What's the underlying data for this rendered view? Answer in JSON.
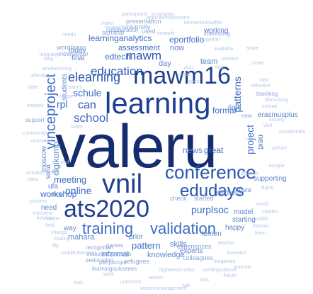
{
  "cloud_words": [
    "valeru",
    "learning",
    "mawm16",
    "vnil",
    "ats2020",
    "conference",
    "edudays",
    "training",
    "validation",
    "elearning",
    "vinceproject",
    "education",
    "school",
    "schule",
    "can",
    "rpl",
    "eportfolio",
    "learninganalytics",
    "mawm",
    "edtech",
    "assessment",
    "meeting",
    "workshop",
    "online",
    "purplsoc",
    "project",
    "patterns",
    "pattern",
    "informal",
    "great",
    "news",
    "formal",
    "skills",
    "team",
    "digikomp",
    "students",
    "now",
    "day",
    "next",
    "working",
    "final",
    "today",
    "time",
    "experts",
    "knowledge",
    "mahara",
    "way",
    "need",
    "ufa",
    "mcu",
    "zagreb",
    "moscow",
    "sofia",
    "supporting",
    "future",
    "check",
    "model",
    "lernen",
    "prior",
    "started",
    "starting",
    "happy",
    "teachers",
    "erasmusplus",
    "presentation",
    "seminar",
    "university",
    "collaboration",
    "used",
    "network",
    "wordpress",
    "anerkennung",
    "newsletter",
    "issues",
    "experiences",
    "recognition",
    "refugees",
    "colleagues",
    "eeducation",
    "eeducationaustria",
    "learningoutcomes",
    "peripscope",
    "highereducation",
    "wissen",
    "unterricht",
    "wissensmanagement",
    "participants",
    "programm",
    "approach",
    "slideshare",
    "kennenlernkaffee",
    "make",
    "moment",
    "together",
    "interesting",
    "available",
    "session",
    "reflective",
    "teaching",
    "discussing",
    "edchat",
    "society",
    "start",
    "new",
    "visit",
    "data",
    "lessons",
    "reflection",
    "support",
    "video",
    "house",
    "make",
    "learners",
    "digital",
    "picture",
    "europe",
    "inclusion",
    "class",
    "cool",
    "pictures",
    "fieldtrip",
    "interview",
    "field",
    "change",
    "making",
    "twitter",
    "tool",
    "medien",
    "mobile",
    "world",
    "estonia",
    "learn",
    "community",
    "outcomes",
    "language",
    "blog",
    "needs",
    "create",
    "share",
    "socialmedia",
    "first",
    "good",
    "mooc",
    "dslu",
    "flip",
    "mobile learning",
    "workingoutloud",
    "leogames",
    "thewatch",
    "teacher",
    "games",
    "work",
    "look",
    "jobs",
    "future",
    "talk",
    "onenote",
    "geht"
  ]
}
